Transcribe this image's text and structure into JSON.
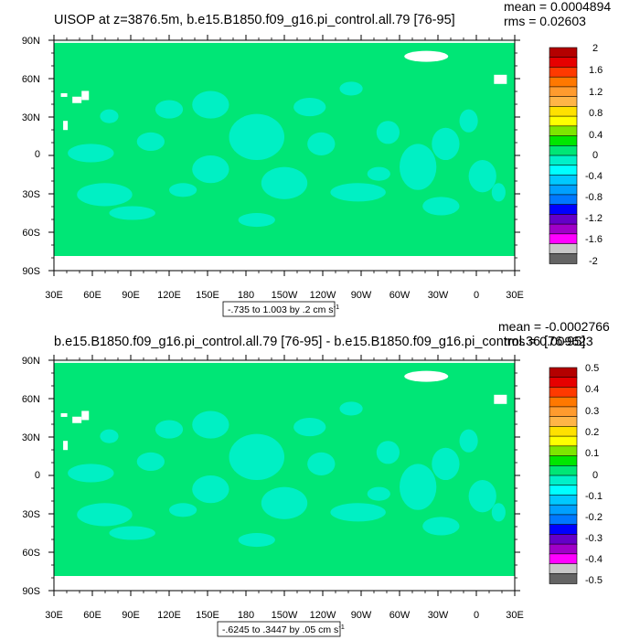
{
  "chart_data": [
    {
      "type": "heatmap",
      "title": "UISOP at z=3876.5m, b.e15.B1850.f09_g16.pi_control.all.79 [76-95]",
      "stats": {
        "mean": "mean = 0.0004894",
        "rms": "rms = 0.02603"
      },
      "x_ticks": [
        "30E",
        "60E",
        "90E",
        "120E",
        "150E",
        "180",
        "150W",
        "120W",
        "90W",
        "60W",
        "30W",
        "0",
        "30E"
      ],
      "y_ticks": [
        "90N",
        "60N",
        "30N",
        "0",
        "30S",
        "60S",
        "90S"
      ],
      "contour_info": "-.735 to 1.003 by .2 cm s",
      "contour_info_superscript": "-1",
      "colorbar": {
        "labels": [
          "2",
          "1.6",
          "1.2",
          "0.8",
          "0.4",
          "0",
          "-0.4",
          "-0.8",
          "-1.2",
          "-1.6",
          "-2"
        ],
        "colors": [
          "#b40000",
          "#e60000",
          "#ff3a00",
          "#ff7800",
          "#ff9b2e",
          "#ffb547",
          "#ffe100",
          "#ffff00",
          "#7de600",
          "#00e600",
          "#00e676",
          "#00f0c8",
          "#00ffff",
          "#00c8ff",
          "#00a0ff",
          "#0078ff",
          "#0000ff",
          "#6400c8",
          "#a000c8",
          "#ff00ff",
          "#c8c8c8",
          "#646464"
        ]
      },
      "field": {
        "background": "#00e676",
        "anomaly": "#00f0c8",
        "missing": "#ffffff"
      }
    },
    {
      "type": "heatmap",
      "title": "b.e15.B1850.f09_g16.pi_control.all.79 [76-95] - b.e15.B1850.f09_g16.pi_control.36 [76-95]",
      "stats": {
        "mean": "mean = -0.0002766",
        "rms": "rms = 0.009623"
      },
      "x_ticks": [
        "30E",
        "60E",
        "90E",
        "120E",
        "150E",
        "180",
        "150W",
        "120W",
        "90W",
        "60W",
        "30W",
        "0",
        "30E"
      ],
      "y_ticks": [
        "90N",
        "60N",
        "30N",
        "0",
        "30S",
        "60S",
        "90S"
      ],
      "contour_info": "-.6245 to .3447 by .05 cm s",
      "contour_info_superscript": "-1",
      "colorbar": {
        "labels": [
          "0.5",
          "0.4",
          "0.3",
          "0.2",
          "0.1",
          "0",
          "-0.1",
          "-0.2",
          "-0.3",
          "-0.4",
          "-0.5"
        ],
        "colors": [
          "#b40000",
          "#e60000",
          "#ff3a00",
          "#ff7800",
          "#ff9b2e",
          "#ffb547",
          "#ffe100",
          "#ffff00",
          "#7de600",
          "#00e600",
          "#00e676",
          "#00f0c8",
          "#00ffff",
          "#00c8ff",
          "#00a0ff",
          "#0078ff",
          "#0000ff",
          "#6400c8",
          "#a000c8",
          "#ff00ff",
          "#c8c8c8",
          "#646464"
        ]
      },
      "field": {
        "background": "#00e676",
        "anomaly": "#00f0c8",
        "missing": "#ffffff"
      }
    }
  ]
}
